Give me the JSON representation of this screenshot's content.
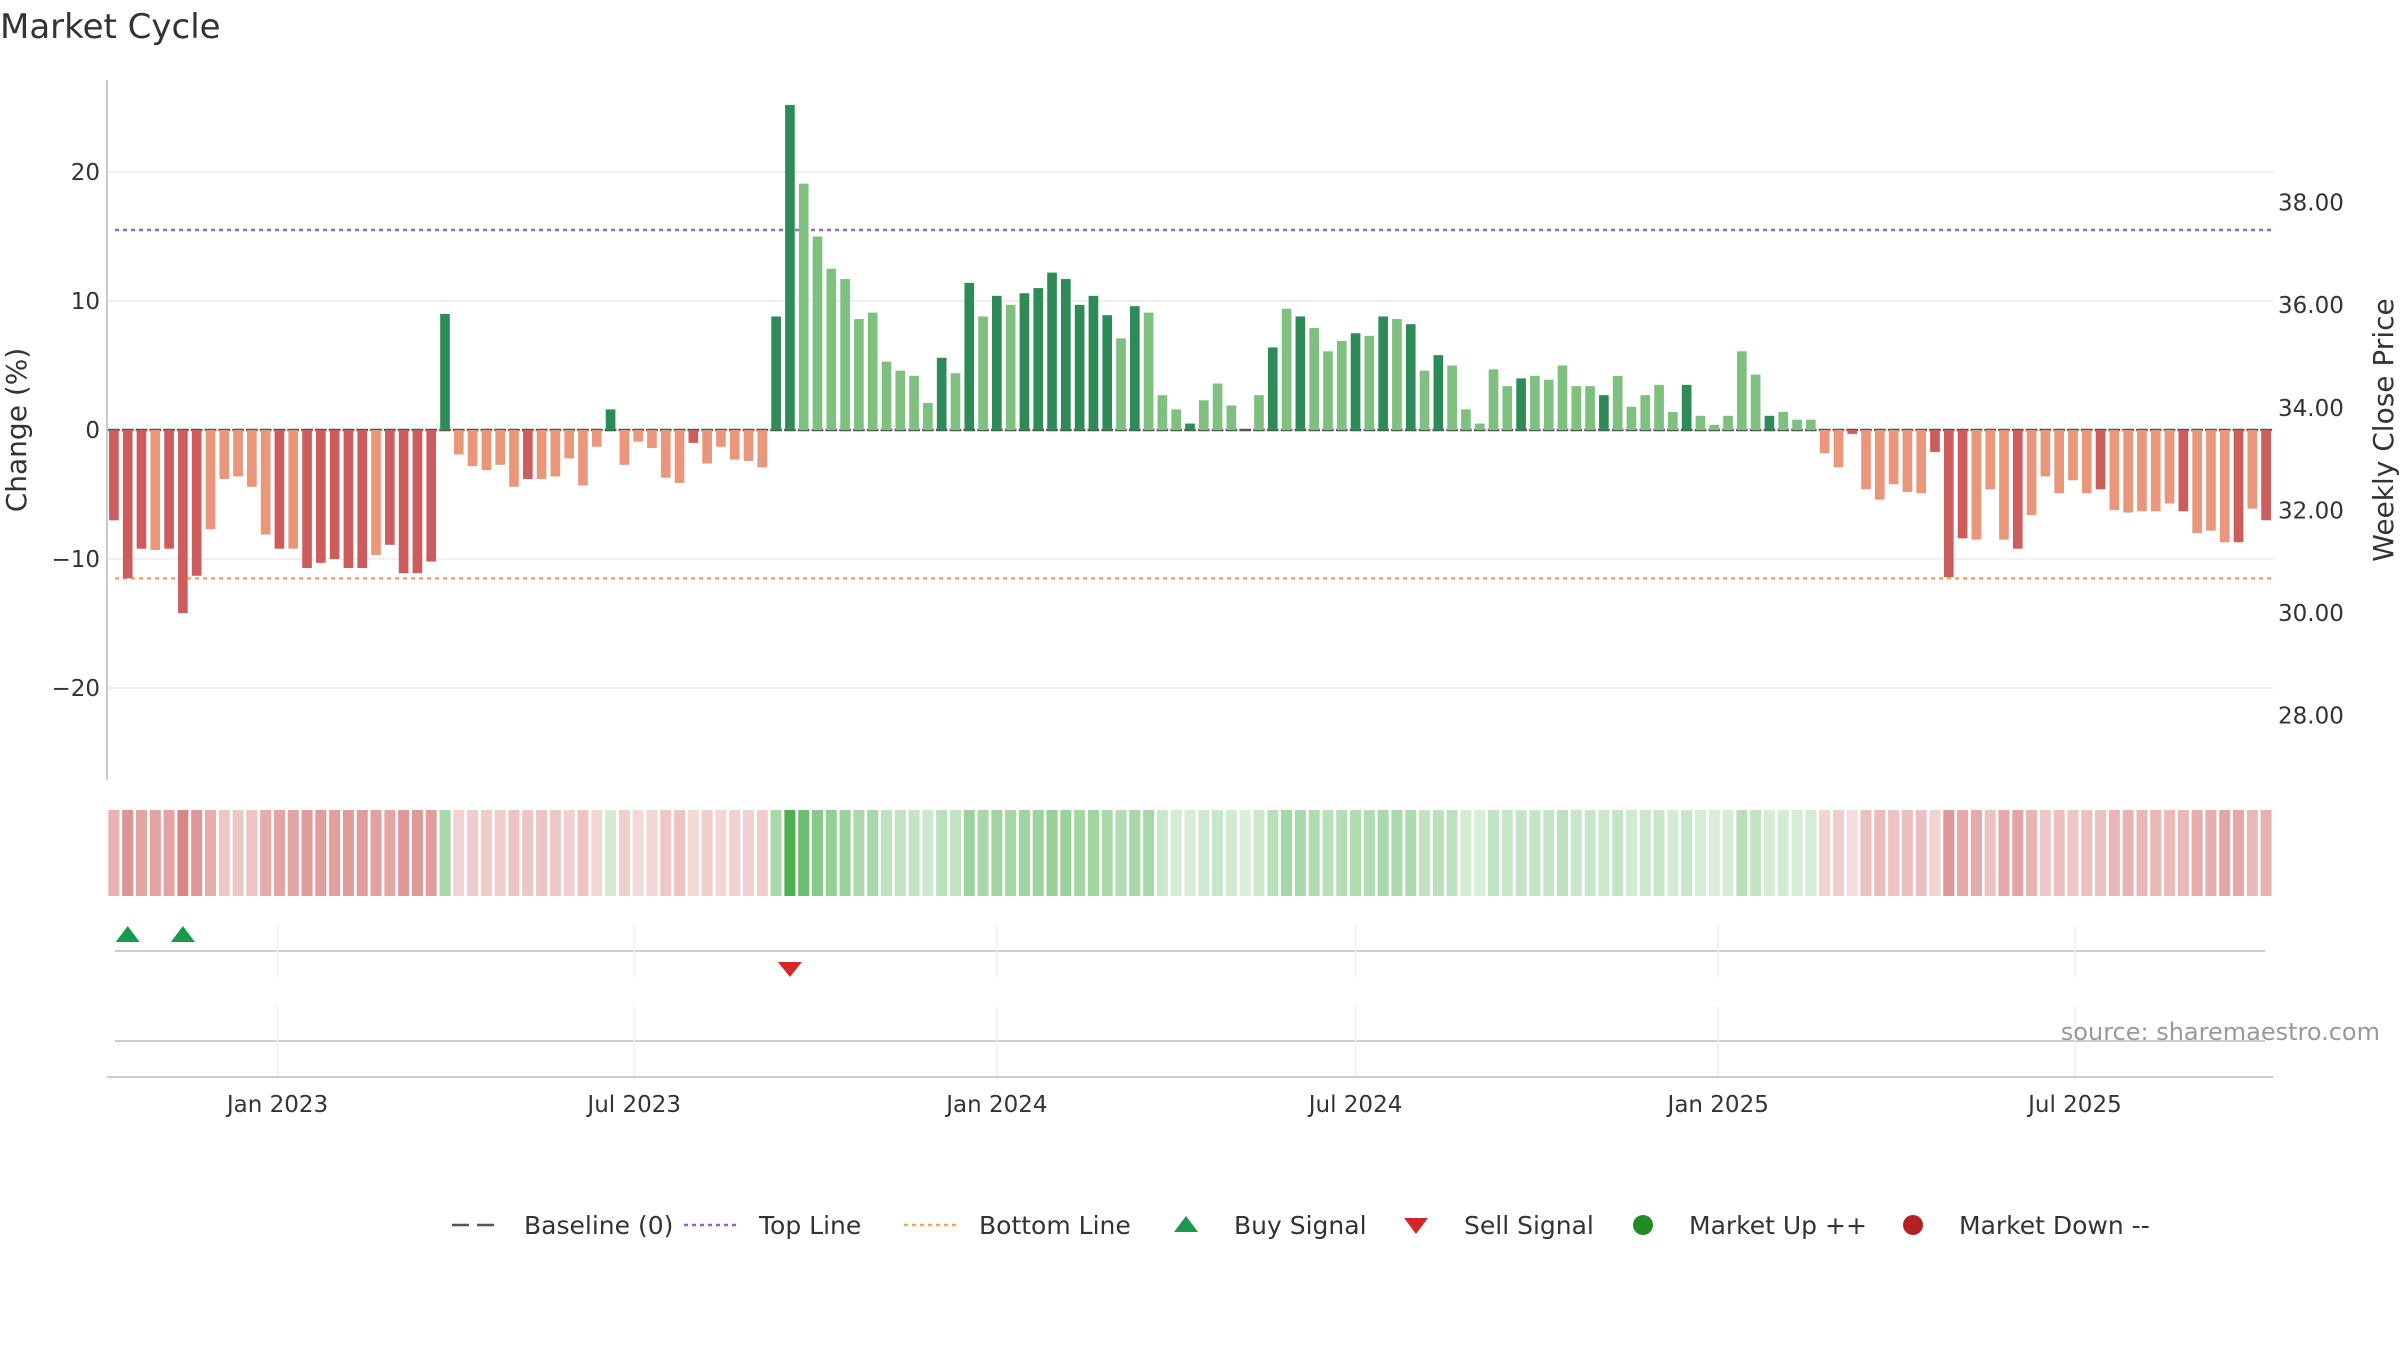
{
  "title": "Market Cycle",
  "source": "source: sharemaestro.com",
  "colors": {
    "up_strong": "#2e8b57",
    "up_light": "#7fbf7f",
    "down_strong": "#cd5c5c",
    "down_light": "#e9967a",
    "top_line": "#9467bd",
    "bottom_line": "#f4a460",
    "baseline": "#555555",
    "buy": "#1a9850",
    "sell": "#d62728",
    "market_up": "#228b22",
    "market_down": "#b22222"
  },
  "chart_data": {
    "type": "bar",
    "title": "Market Cycle",
    "ylabel": "Change (%)",
    "y2label": "Weekly Close Price",
    "ylim": [
      -27,
      27
    ],
    "yticks": [
      20,
      10,
      0,
      -10,
      -20
    ],
    "ytick_labels": [
      "20",
      "10",
      "0",
      "−10",
      "−20"
    ],
    "y2ticks": [
      38,
      36,
      34,
      32,
      30,
      28
    ],
    "y2tick_labels": [
      "38.00",
      "36.00",
      "34.00",
      "32.00",
      "30.00",
      "28.00"
    ],
    "y2lim": [
      25.15,
      39.55
    ],
    "start_date": "2022-10-10",
    "week_count": 157,
    "xtick_dates": [
      "2023-01-01",
      "2023-07-01",
      "2024-01-01",
      "2024-07-01",
      "2025-01-01",
      "2025-07-01"
    ],
    "xtick_labels": [
      "Jan 2023",
      "Jul 2023",
      "Jan 2024",
      "Jul 2024",
      "Jan 2025",
      "Jul 2025"
    ],
    "top_line": 15.5,
    "bottom_line": -11.5,
    "baseline": 0,
    "values": [
      -7,
      -11.5,
      -9.2,
      -9.3,
      -9.2,
      -14.2,
      -11.3,
      -7.7,
      -3.8,
      -3.6,
      -4.4,
      -8.1,
      -9.2,
      -9.2,
      -10.7,
      -10.3,
      -10.0,
      -10.7,
      -10.7,
      -9.7,
      -8.9,
      -11.1,
      -11.1,
      -10.2,
      9.0,
      -1.9,
      -2.8,
      -3.1,
      -2.7,
      -4.4,
      -3.8,
      -3.8,
      -3.6,
      -2.2,
      -4.3,
      -1.3,
      1.6,
      -2.7,
      -0.9,
      -1.4,
      -3.7,
      -4.1,
      -1.0,
      -2.6,
      -1.3,
      -2.3,
      -2.4,
      -2.9,
      8.8,
      25.2,
      19.1,
      15.0,
      12.5,
      11.7,
      8.6,
      9.1,
      5.3,
      4.6,
      4.2,
      2.1,
      5.6,
      4.4,
      11.4,
      8.8,
      10.4,
      9.7,
      10.6,
      11.0,
      12.2,
      11.7,
      9.7,
      10.4,
      8.9,
      7.1,
      9.6,
      9.1,
      2.7,
      1.6,
      0.5,
      2.3,
      3.6,
      1.9,
      0,
      2.7,
      6.4,
      9.4,
      8.8,
      7.9,
      6.1,
      6.9,
      7.5,
      7.3,
      8.8,
      8.6,
      8.2,
      4.6,
      5.8,
      5.0,
      1.6,
      0.5,
      4.7,
      3.4,
      4.0,
      4.2,
      3.9,
      5.0,
      3.4,
      3.4,
      2.7,
      4.2,
      1.8,
      2.7,
      3.5,
      1.4,
      3.5,
      1.1,
      0.4,
      1.1,
      6.1,
      4.3,
      1.1,
      1.4,
      0.8,
      0.8,
      -1.8,
      -2.9,
      -0.3,
      -4.6,
      -5.4,
      -4.2,
      -4.8,
      -4.9,
      -1.7,
      -11.4,
      -8.4,
      -8.5,
      -4.6,
      -8.5,
      -9.2,
      -6.6,
      -3.6,
      -4.9,
      -3.9,
      -4.9,
      -4.6,
      -6.2,
      -6.4,
      -6.3,
      -6.3,
      -5.7,
      -6.3,
      -8.0,
      -7.8,
      -8.7,
      -8.7,
      -6.1,
      -7.0
    ],
    "buy_signal_weeks": [
      1,
      5
    ],
    "sell_signal_weeks": [
      49
    ],
    "market_up_weeks": [],
    "market_down_weeks": []
  },
  "legend": [
    {
      "label": "Baseline (0)",
      "icon": "dash-line"
    },
    {
      "label": "Top Line",
      "icon": "dotted-line-purple"
    },
    {
      "label": "Bottom Line",
      "icon": "dotted-line-orange"
    },
    {
      "label": "Buy Signal",
      "icon": "triangle-up"
    },
    {
      "label": "Sell Signal",
      "icon": "triangle-down"
    },
    {
      "label": "Market Up ++",
      "icon": "circle-green"
    },
    {
      "label": "Market Down --",
      "icon": "circle-red"
    }
  ]
}
